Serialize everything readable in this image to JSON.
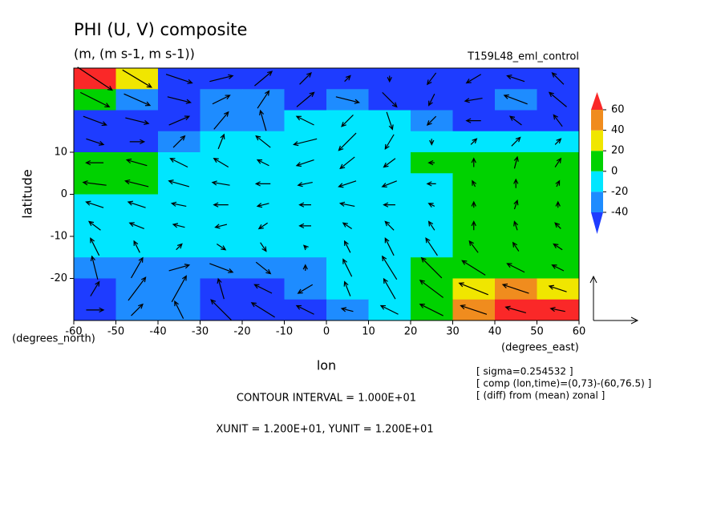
{
  "chart_data": {
    "type": "contour",
    "title": "PHI (U, V) composite",
    "subtitle": "(m, (m s-1, m s-1))",
    "run_label": "T159L48_eml_control",
    "x_label": "lon",
    "y_label": "latitude",
    "x_unit_label": "(degrees_east)",
    "y_unit_label": "(degrees_north)",
    "contour_text": "CONTOUR INTERVAL = 1.000E+01",
    "unit_text": "XUNIT = 1.200E+01, YUNIT = 1.200E+01",
    "notes": [
      "[ sigma=0.254532 ]",
      "[ comp (lon,time)=(0,73)-(60,76.5) ]",
      "[ (diff) from (mean) zonal ]"
    ],
    "xlim": [
      -60,
      60
    ],
    "ylim": [
      -30,
      30
    ],
    "xticks": [
      -60,
      -50,
      -40,
      -30,
      -20,
      -10,
      0,
      10,
      20,
      30,
      40,
      50,
      60
    ],
    "yticks": [
      -20,
      -10,
      0,
      10
    ],
    "x": [
      -55,
      -45,
      -35,
      -25,
      -15,
      -5,
      5,
      15,
      25,
      35,
      45,
      55
    ],
    "y": [
      27.5,
      22.5,
      17.5,
      12.5,
      7.5,
      2.5,
      -2.5,
      -7.5,
      -12.5,
      -17.5,
      -22.5,
      -27.5
    ],
    "levels": [
      -40,
      -20,
      0,
      20,
      40,
      60
    ],
    "colors": [
      "#1e3cff",
      "#1e8cff",
      "#00e6ff",
      "#00d200",
      "#f0e600",
      "#f08c1e",
      "#fa2828"
    ],
    "values": [
      [
        65,
        30,
        -50,
        -50,
        -50,
        -50,
        -50,
        -50,
        -50,
        -50,
        -50,
        -50
      ],
      [
        10,
        -30,
        -50,
        -30,
        -25,
        -50,
        -30,
        -50,
        -50,
        -50,
        -30,
        -45
      ],
      [
        -45,
        -50,
        -45,
        -30,
        -25,
        -15,
        -10,
        -10,
        -30,
        -45,
        -45,
        -45
      ],
      [
        -45,
        -45,
        -30,
        -15,
        -10,
        -10,
        -5,
        -10,
        -20,
        -10,
        -15,
        -20
      ],
      [
        5,
        5,
        -10,
        -15,
        -15,
        -15,
        -10,
        -10,
        5,
        5,
        5,
        5
      ],
      [
        5,
        5,
        -10,
        -15,
        -15,
        -15,
        -10,
        -10,
        -5,
        5,
        5,
        5
      ],
      [
        -10,
        -10,
        -10,
        -15,
        -15,
        -15,
        -10,
        -10,
        -5,
        5,
        5,
        5
      ],
      [
        -15,
        -10,
        -15,
        -15,
        -15,
        -15,
        -10,
        -10,
        -5,
        5,
        5,
        5
      ],
      [
        -15,
        -15,
        -20,
        -15,
        -15,
        -15,
        -10,
        -10,
        -5,
        10,
        10,
        10
      ],
      [
        -30,
        -25,
        -30,
        -30,
        -25,
        -25,
        -15,
        -10,
        5,
        15,
        15,
        15
      ],
      [
        -45,
        -30,
        -30,
        -45,
        -45,
        -35,
        -20,
        -10,
        10,
        30,
        45,
        30
      ],
      [
        -45,
        -35,
        -35,
        -50,
        -50,
        -45,
        -30,
        -10,
        10,
        40,
        65,
        65
      ]
    ],
    "u": [
      [
        12,
        10,
        9,
        8,
        6,
        4,
        2,
        0,
        -3,
        -5,
        -6,
        -4
      ],
      [
        10,
        9,
        8,
        6,
        4,
        6,
        8,
        5,
        -2,
        -6,
        -8,
        -6
      ],
      [
        8,
        8,
        7,
        5,
        -2,
        -6,
        -4,
        2,
        -3,
        -5,
        -4,
        -3
      ],
      [
        6,
        5,
        4,
        2,
        -5,
        -8,
        -6,
        -3,
        0,
        2,
        3,
        2
      ],
      [
        -6,
        -7,
        -6,
        -5,
        -4,
        -6,
        -5,
        -4,
        -2,
        0,
        1,
        2
      ],
      [
        -8,
        -8,
        -7,
        -6,
        -5,
        -5,
        -6,
        -5,
        -3,
        -1,
        0,
        1
      ],
      [
        -6,
        -6,
        -5,
        -5,
        -4,
        -4,
        -5,
        -4,
        -2,
        0,
        1,
        0
      ],
      [
        -4,
        -5,
        -4,
        -4,
        -3,
        -4,
        -3,
        -3,
        -2,
        0,
        -1,
        -2
      ],
      [
        -3,
        -2,
        2,
        3,
        2,
        -1,
        -2,
        -3,
        -4,
        -3,
        -2,
        -3
      ],
      [
        -2,
        4,
        7,
        8,
        5,
        0,
        -3,
        -5,
        -7,
        -8,
        -6,
        -4
      ],
      [
        3,
        6,
        5,
        -2,
        -6,
        -5,
        -2,
        -4,
        -8,
        -10,
        -9,
        -6
      ],
      [
        6,
        4,
        -3,
        -7,
        -8,
        -6,
        -4,
        -6,
        -8,
        -9,
        -7,
        -5
      ]
    ],
    "v": [
      [
        -8,
        -6,
        -3,
        2,
        5,
        4,
        2,
        -2,
        -4,
        -3,
        2,
        4
      ],
      [
        -5,
        -4,
        -2,
        3,
        6,
        5,
        -2,
        -5,
        -4,
        -1,
        3,
        5
      ],
      [
        -3,
        -2,
        3,
        6,
        7,
        3,
        -4,
        -6,
        -3,
        0,
        3,
        4
      ],
      [
        -2,
        0,
        4,
        5,
        4,
        -2,
        -6,
        -5,
        -2,
        2,
        3,
        2
      ],
      [
        0,
        2,
        3,
        3,
        2,
        -2,
        -4,
        -3,
        0,
        3,
        4,
        3
      ],
      [
        1,
        2,
        2,
        1,
        0,
        -1,
        -2,
        -2,
        0,
        2,
        3,
        2
      ],
      [
        2,
        2,
        1,
        0,
        -1,
        0,
        1,
        0,
        1,
        2,
        3,
        2
      ],
      [
        3,
        2,
        1,
        -1,
        -2,
        0,
        2,
        3,
        3,
        3,
        3,
        2
      ],
      [
        6,
        4,
        2,
        -2,
        -3,
        1,
        4,
        6,
        6,
        4,
        3,
        2
      ],
      [
        8,
        7,
        2,
        -3,
        -4,
        2,
        6,
        8,
        7,
        5,
        3,
        2
      ],
      [
        5,
        8,
        9,
        7,
        3,
        -3,
        5,
        7,
        6,
        4,
        3,
        2
      ],
      [
        0,
        4,
        6,
        7,
        5,
        3,
        1,
        3,
        4,
        3,
        2,
        1
      ]
    ]
  }
}
